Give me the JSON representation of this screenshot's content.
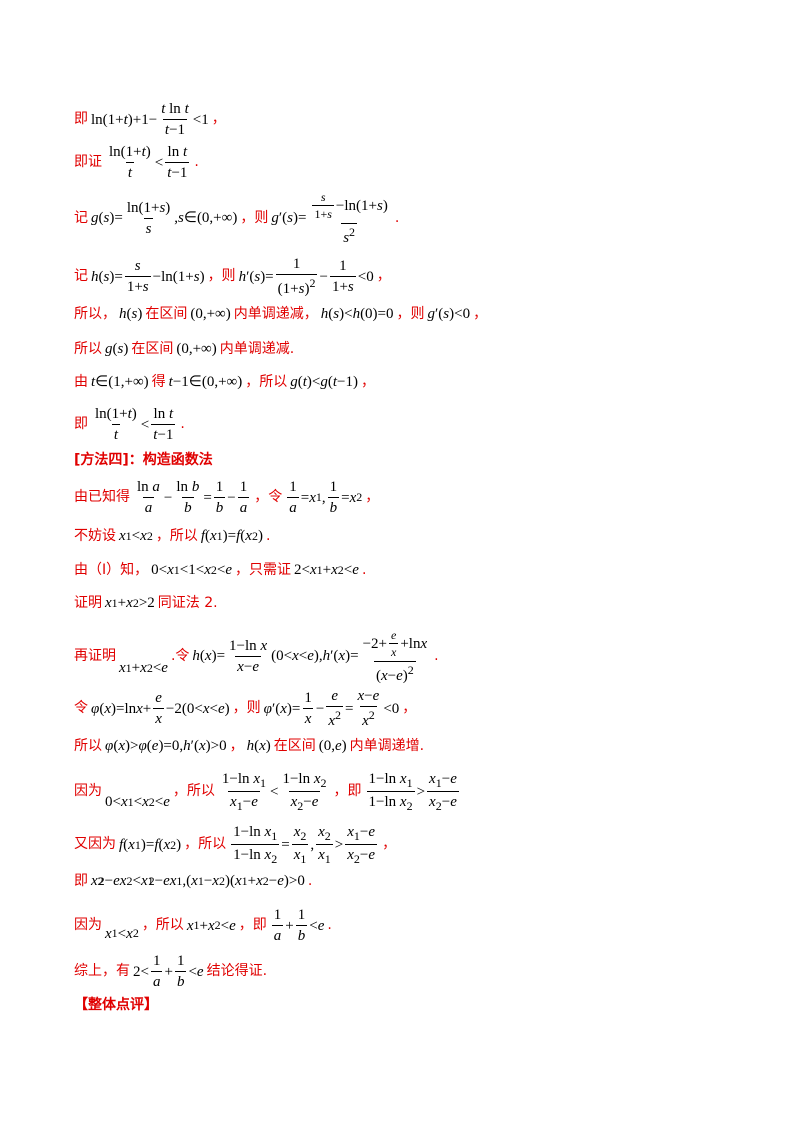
{
  "lines": [
    {
      "prefix": "即",
      "math": "ln(1+t)+1−(t ln t)/(t−1) < 1",
      "suffix": "，",
      "color": "red"
    },
    {
      "prefix": "即证",
      "math": "ln(1+t)/t < ln t/(t−1)",
      "suffix": ".",
      "color": "red"
    },
    {
      "prefix": "记",
      "math": "g(s) = ln(1+s)/s, s∈(0,+∞)",
      "middle": "，则",
      "math2": "g′(s) = [s/(1+s) − ln(1+s)]/s²",
      "suffix": ".",
      "color": "red"
    },
    {
      "prefix": "记",
      "math": "h(s) = s/(1+s) − ln(1+s)",
      "middle": "，则",
      "math2": "h′(s) = 1/(1+s)² − 1/(1+s) < 0",
      "suffix": "，",
      "color": "red"
    },
    {
      "prefix": "所以，",
      "math": "h(s)",
      "middle": "在区间",
      "math2": "(0,+∞)",
      "middle2": "内单调递减，",
      "math3": "h(s) < h(0) = 0",
      "middle3": "，则",
      "math4": "g′(s) < 0",
      "suffix": "，",
      "color": "red"
    },
    {
      "prefix": "所以",
      "math": "g(s)",
      "middle": "在区间",
      "math2": "(0,+∞)",
      "suffix": "内单调递减.",
      "color": "red"
    },
    {
      "prefix": "由",
      "math": "t∈(1,+∞)",
      "middle": "得",
      "math2": "t−1∈(0,+∞)",
      "middle2": "，所以",
      "math3": "g(t) < g(t−1)",
      "suffix": "，",
      "color": "red"
    },
    {
      "prefix": "即",
      "math": "ln(1+t)/t < ln t/(t−1)",
      "suffix": ".",
      "color": "red"
    },
    {
      "heading": "[方法四]：构造函数法",
      "color": "red"
    },
    {
      "prefix": "由已知得",
      "math": "ln a/a − ln b/b = 1/b − 1/a",
      "middle": "，令",
      "math2": "1/a = x₁, 1/b = x₂",
      "suffix": "，",
      "color": "red"
    },
    {
      "prefix": "不妨设",
      "math": "x₁ < x₂",
      "middle": "，所以",
      "math2": "f(x₁) = f(x₂)",
      "suffix": ".",
      "color": "red"
    },
    {
      "prefix": "由（Ⅰ）知，",
      "math": "0 < x₁ < 1 < x₂ < e",
      "middle": "，只需证",
      "math2": "2 < x₁ + x₂ < e",
      "suffix": ".",
      "color": "red"
    },
    {
      "prefix": "证明",
      "math": "x₁ + x₂ > 2",
      "suffix": "同证法 2.",
      "color": "red"
    },
    {
      "prefix": "再证明",
      "math": "x₁ + x₂ < e",
      "middle": ".令",
      "math2": "h(x) = (1−ln x)/(x−e) (0<x<e), h′(x) = (−2 + e/x + ln x)/(x−e)²",
      "suffix": ".",
      "color": "red"
    },
    {
      "prefix": "令",
      "math": "φ(x) = ln x + e/x − 2 (0<x<e)",
      "middle": "，则",
      "math2": "φ′(x) = 1/x − e/x² = (x−e)/x² < 0",
      "suffix": "，",
      "color": "red"
    },
    {
      "prefix": "所以",
      "math": "φ(x) > φ(e) = 0, h′(x) > 0",
      "middle": "，",
      "math2": "h(x)",
      "middle2": "在区间",
      "math3": "(0,e)",
      "suffix": "内单调递增.",
      "color": "red"
    },
    {
      "prefix": "因为",
      "math": "0 < x₁ < x₂ < e",
      "middle": "，所以",
      "math2": "(1−ln x₁)/(x₁−e) < (1−ln x₂)/(x₂−e)",
      "middle2": "，即",
      "math3": "(1−ln x₁)/(1−ln x₂) > (x₁−e)/(x₂−e)",
      "color": "red"
    },
    {
      "prefix": "又因为",
      "math": "f(x₁) = f(x₂)",
      "middle": "，所以",
      "math2": "(1−ln x₁)/(1−ln x₂) = x₂/x₁, x₂/x₁ > (x₁−e)/(x₂−e)",
      "suffix": "，",
      "color": "red"
    },
    {
      "prefix": "即",
      "math": "x₂² − ex₂ < x₁² − ex₁, (x₁−x₂)(x₁+x₂−e) > 0",
      "suffix": ".",
      "color": "red"
    },
    {
      "prefix": "因为",
      "math": "x₁ < x₂",
      "middle": "，所以",
      "math2": "x₁ + x₂ < e",
      "middle2": "，即",
      "math3": "1/a + 1/b < e",
      "suffix": ".",
      "color": "red"
    },
    {
      "prefix": "综上，有",
      "math": "2 < 1/a + 1/b < e",
      "suffix": "结论得证.",
      "color": "red"
    },
    {
      "heading": "【整体点评】",
      "color": "red"
    }
  ]
}
